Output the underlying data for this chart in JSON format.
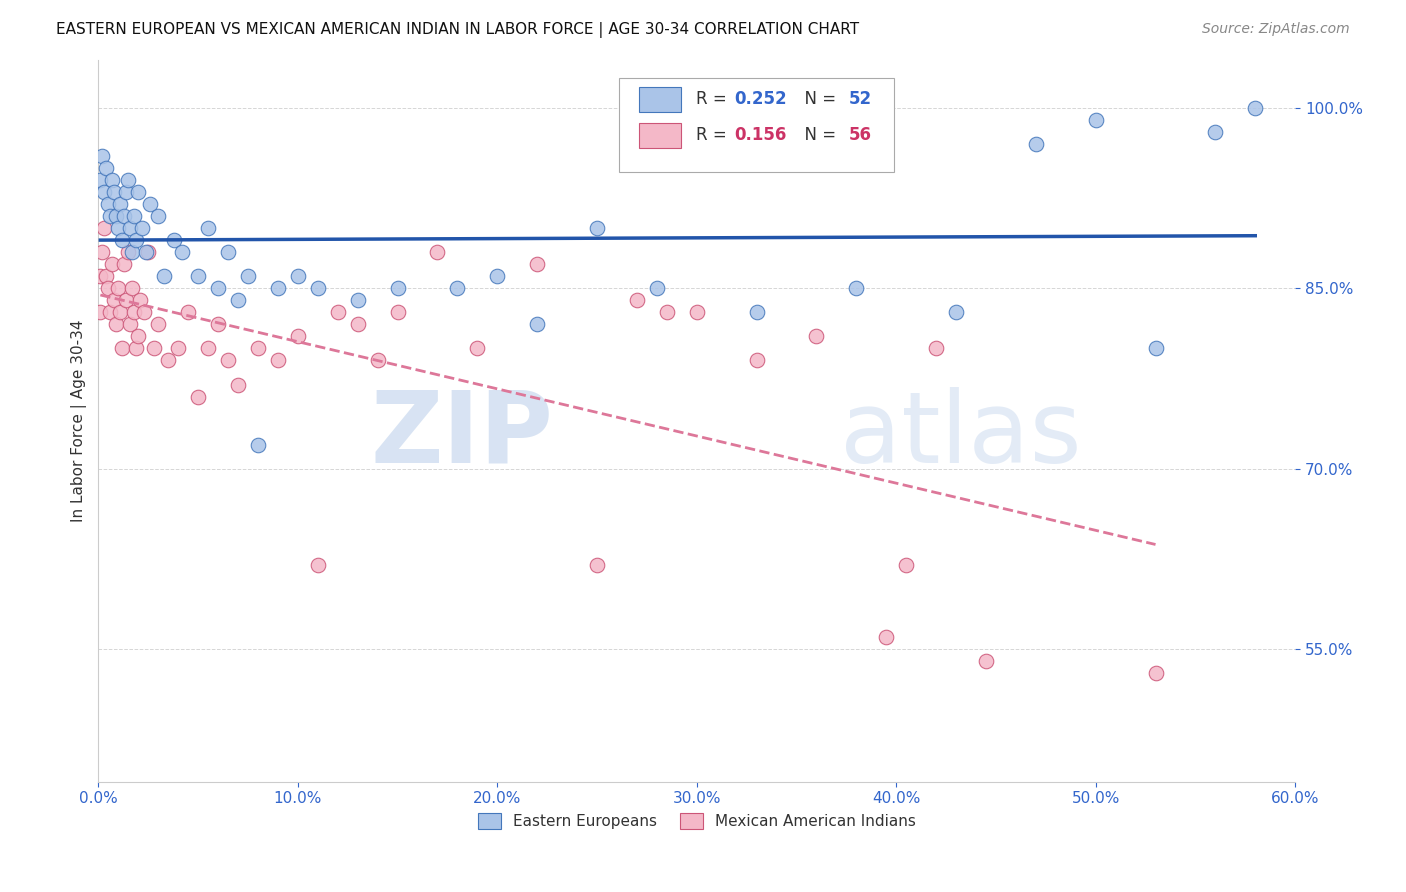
{
  "title": "EASTERN EUROPEAN VS MEXICAN AMERICAN INDIAN IN LABOR FORCE | AGE 30-34 CORRELATION CHART",
  "source": "Source: ZipAtlas.com",
  "ylabel": "In Labor Force | Age 30-34",
  "xlim": [
    0.0,
    60.0
  ],
  "ylim": [
    44.0,
    104.0
  ],
  "xticks": [
    0.0,
    10.0,
    20.0,
    30.0,
    40.0,
    50.0,
    60.0
  ],
  "yticks": [
    55.0,
    70.0,
    85.0,
    100.0
  ],
  "ytick_labels": [
    "55.0%",
    "70.0%",
    "85.0%",
    "100.0%"
  ],
  "xtick_labels": [
    "0.0%",
    "10.0%",
    "20.0%",
    "30.0%",
    "40.0%",
    "50.0%",
    "60.0%"
  ],
  "blue_R": 0.252,
  "blue_N": 52,
  "pink_R": 0.156,
  "pink_N": 56,
  "blue_label": "Eastern Europeans",
  "pink_label": "Mexican American Indians",
  "blue_color": "#aac4e8",
  "pink_color": "#f4b8c8",
  "blue_edge_color": "#4477bb",
  "pink_edge_color": "#cc5577",
  "blue_trend_color": "#2255aa",
  "pink_trend_color": "#dd7799",
  "watermark_zip": "ZIP",
  "watermark_atlas": "atlas",
  "blue_x": [
    0.1,
    0.2,
    0.3,
    0.4,
    0.5,
    0.6,
    0.7,
    0.8,
    0.9,
    1.0,
    1.1,
    1.2,
    1.3,
    1.4,
    1.5,
    1.6,
    1.7,
    1.8,
    1.9,
    2.0,
    2.2,
    2.4,
    2.6,
    3.0,
    3.3,
    3.8,
    4.2,
    5.0,
    5.5,
    6.0,
    6.5,
    7.0,
    7.5,
    8.0,
    9.0,
    10.0,
    11.0,
    13.0,
    15.0,
    18.0,
    20.0,
    22.0,
    25.0,
    28.0,
    33.0,
    38.0,
    43.0,
    47.0,
    50.0,
    53.0,
    56.0,
    58.0
  ],
  "blue_y": [
    94.0,
    96.0,
    93.0,
    95.0,
    92.0,
    91.0,
    94.0,
    93.0,
    91.0,
    90.0,
    92.0,
    89.0,
    91.0,
    93.0,
    94.0,
    90.0,
    88.0,
    91.0,
    89.0,
    93.0,
    90.0,
    88.0,
    92.0,
    91.0,
    86.0,
    89.0,
    88.0,
    86.0,
    90.0,
    85.0,
    88.0,
    84.0,
    86.0,
    72.0,
    85.0,
    86.0,
    85.0,
    84.0,
    85.0,
    85.0,
    86.0,
    82.0,
    90.0,
    85.0,
    83.0,
    85.0,
    83.0,
    97.0,
    99.0,
    80.0,
    98.0,
    100.0
  ],
  "pink_x": [
    0.1,
    0.1,
    0.2,
    0.3,
    0.4,
    0.5,
    0.6,
    0.7,
    0.8,
    0.9,
    1.0,
    1.1,
    1.2,
    1.3,
    1.4,
    1.5,
    1.6,
    1.7,
    1.8,
    1.9,
    2.0,
    2.1,
    2.3,
    2.5,
    2.8,
    3.0,
    3.5,
    4.0,
    4.5,
    5.0,
    5.5,
    6.0,
    6.5,
    7.0,
    8.0,
    9.0,
    10.0,
    11.0,
    12.0,
    13.0,
    14.0,
    15.0,
    17.0,
    19.0,
    22.0,
    25.0,
    27.0,
    28.5,
    30.0,
    33.0,
    36.0,
    39.5,
    40.5,
    42.0,
    44.5,
    53.0
  ],
  "pink_y": [
    83.0,
    86.0,
    88.0,
    90.0,
    86.0,
    85.0,
    83.0,
    87.0,
    84.0,
    82.0,
    85.0,
    83.0,
    80.0,
    87.0,
    84.0,
    88.0,
    82.0,
    85.0,
    83.0,
    80.0,
    81.0,
    84.0,
    83.0,
    88.0,
    80.0,
    82.0,
    79.0,
    80.0,
    83.0,
    76.0,
    80.0,
    82.0,
    79.0,
    77.0,
    80.0,
    79.0,
    81.0,
    62.0,
    83.0,
    82.0,
    79.0,
    83.0,
    88.0,
    80.0,
    87.0,
    62.0,
    84.0,
    83.0,
    83.0,
    79.0,
    81.0,
    56.0,
    62.0,
    80.0,
    54.0,
    53.0
  ]
}
